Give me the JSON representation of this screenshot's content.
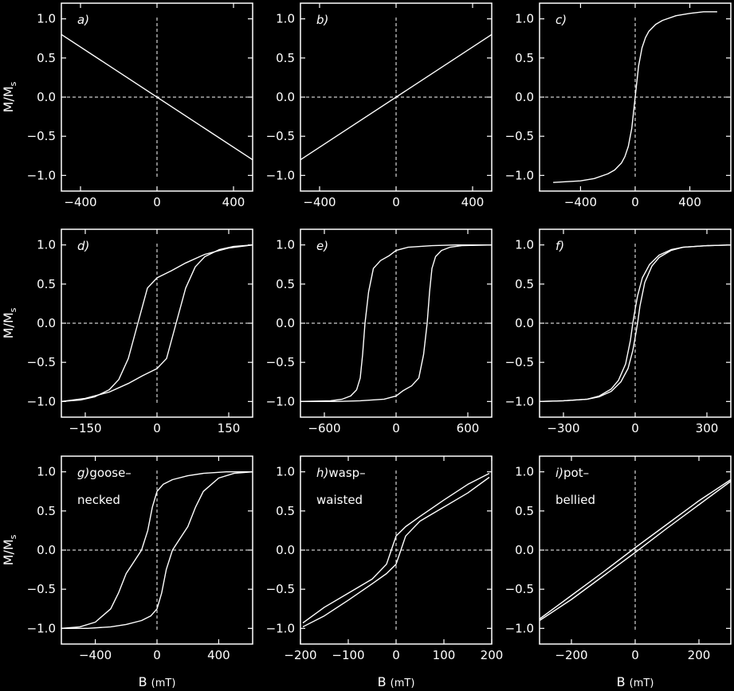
{
  "figure": {
    "ylabel_main": "M/M",
    "ylabel_sub": "s",
    "xlabel_main": "B",
    "xlabel_unit": "(mT)",
    "xlabel_unit_h": "(mT)"
  },
  "chart_data": [
    {
      "id": "a",
      "type": "line",
      "label_tag": "a)",
      "label_text": [],
      "xlim": [
        -500,
        500
      ],
      "ylim": [
        -1.2,
        1.2
      ],
      "xticks": [
        -400,
        0,
        400
      ],
      "xtick_labels": [
        "−400",
        "0",
        "400"
      ],
      "yticks": [
        1.0,
        0.5,
        0.0,
        -0.5,
        -1.0
      ],
      "ytick_labels": [
        "1.0",
        "0.5",
        "0.0",
        "−0.5",
        "−1.0"
      ],
      "series": [
        {
          "x": [
            -500,
            500
          ],
          "y": [
            0.8,
            -0.8
          ]
        }
      ]
    },
    {
      "id": "b",
      "type": "line",
      "label_tag": "b)",
      "label_text": [],
      "xlim": [
        -500,
        500
      ],
      "ylim": [
        -1.2,
        1.2
      ],
      "xticks": [
        -400,
        0,
        400
      ],
      "xtick_labels": [
        "−400",
        "0",
        "400"
      ],
      "yticks": [
        1.0,
        0.5,
        0.0,
        -0.5,
        -1.0
      ],
      "ytick_labels": [
        "1.0",
        "0.5",
        "0.0",
        "−0.5",
        "−1.0"
      ],
      "series": [
        {
          "x": [
            -500,
            500
          ],
          "y": [
            -0.8,
            0.8
          ]
        }
      ]
    },
    {
      "id": "c",
      "type": "line",
      "label_tag": "c)",
      "label_text": [],
      "xlim": [
        -700,
        700
      ],
      "ylim": [
        -1.2,
        1.2
      ],
      "xticks": [
        -400,
        0,
        400
      ],
      "xtick_labels": [
        "−400",
        "0",
        "400"
      ],
      "yticks": [
        1.0,
        0.5,
        0.0,
        -0.5,
        -1.0
      ],
      "ytick_labels": [
        "1.0",
        "0.5",
        "0.0",
        "−0.5",
        "−1.0"
      ],
      "series": [
        {
          "x": [
            -600,
            -400,
            -300,
            -200,
            -150,
            -100,
            -75,
            -50,
            -25,
            0,
            25,
            50,
            75,
            100,
            150,
            200,
            300,
            400,
            500,
            600
          ],
          "y": [
            -1.09,
            -1.07,
            -1.04,
            -0.98,
            -0.93,
            -0.84,
            -0.76,
            -0.63,
            -0.4,
            0.0,
            0.4,
            0.63,
            0.76,
            0.84,
            0.93,
            0.98,
            1.04,
            1.07,
            1.09,
            1.09
          ]
        }
      ]
    },
    {
      "id": "d",
      "type": "line",
      "label_tag": "d)",
      "label_text": [],
      "xlim": [
        -200,
        200
      ],
      "ylim": [
        -1.2,
        1.2
      ],
      "xticks": [
        -150,
        0,
        150
      ],
      "xtick_labels": [
        "−150",
        "0",
        "150"
      ],
      "yticks": [
        1.0,
        0.5,
        0.0,
        -0.5,
        -1.0
      ],
      "ytick_labels": [
        "1.0",
        "0.5",
        "0.0",
        "−0.5",
        "−1.0"
      ],
      "series": [
        {
          "x": [
            200,
            150,
            100,
            60,
            30,
            0,
            -20,
            -40,
            -60,
            -80,
            -100,
            -130,
            -160,
            -200
          ],
          "y": [
            1.0,
            0.96,
            0.88,
            0.77,
            0.67,
            0.58,
            0.45,
            0.0,
            -0.45,
            -0.72,
            -0.85,
            -0.94,
            -0.98,
            -1.0
          ]
        },
        {
          "x": [
            -200,
            -150,
            -100,
            -60,
            -30,
            0,
            20,
            40,
            60,
            80,
            100,
            130,
            160,
            200
          ],
          "y": [
            -1.0,
            -0.96,
            -0.88,
            -0.77,
            -0.67,
            -0.58,
            -0.45,
            0.0,
            0.45,
            0.72,
            0.85,
            0.94,
            0.98,
            1.0
          ]
        }
      ]
    },
    {
      "id": "e",
      "type": "line",
      "label_tag": "e)",
      "label_text": [],
      "xlim": [
        -800,
        800
      ],
      "ylim": [
        -1.2,
        1.2
      ],
      "xticks": [
        -600,
        0,
        600
      ],
      "xtick_labels": [
        "−600",
        "0",
        "600"
      ],
      "yticks": [
        1.0,
        0.5,
        0.0,
        -0.5,
        -1.0
      ],
      "ytick_labels": [
        "1.0",
        "0.5",
        "0.0",
        "−0.5",
        "−1.0"
      ],
      "series": [
        {
          "x": [
            800,
            500,
            300,
            100,
            0,
            -60,
            -130,
            -190,
            -230,
            -260,
            -280,
            -300,
            -330,
            -380,
            -450,
            -550,
            -800
          ],
          "y": [
            1.0,
            1.0,
            0.99,
            0.97,
            0.93,
            0.86,
            0.8,
            0.7,
            0.4,
            0.0,
            -0.4,
            -0.7,
            -0.85,
            -0.93,
            -0.97,
            -0.99,
            -1.0
          ]
        },
        {
          "x": [
            -800,
            -500,
            -300,
            -100,
            0,
            60,
            130,
            190,
            230,
            260,
            280,
            300,
            330,
            380,
            450,
            550,
            800
          ],
          "y": [
            -1.0,
            -1.0,
            -0.99,
            -0.97,
            -0.93,
            -0.86,
            -0.8,
            -0.7,
            -0.4,
            0.0,
            0.4,
            0.7,
            0.85,
            0.93,
            0.97,
            0.99,
            1.0
          ]
        }
      ]
    },
    {
      "id": "f",
      "type": "line",
      "label_tag": "f)",
      "label_text": [],
      "xlim": [
        -400,
        400
      ],
      "ylim": [
        -1.2,
        1.2
      ],
      "xticks": [
        -300,
        0,
        300
      ],
      "xtick_labels": [
        "−300",
        "0",
        "300"
      ],
      "yticks": [
        1.0,
        0.5,
        0.0,
        -0.5,
        -1.0
      ],
      "ytick_labels": [
        "1.0",
        "0.5",
        "0.0",
        "−0.5",
        "−1.0"
      ],
      "series": [
        {
          "x": [
            400,
            300,
            200,
            150,
            100,
            60,
            30,
            10,
            0,
            -10,
            -20,
            -40,
            -70,
            -100,
            -150,
            -200,
            -300,
            -400
          ],
          "y": [
            1.0,
            0.99,
            0.97,
            0.94,
            0.87,
            0.75,
            0.58,
            0.35,
            0.18,
            0.0,
            -0.22,
            -0.52,
            -0.73,
            -0.84,
            -0.93,
            -0.97,
            -0.99,
            -1.0
          ]
        },
        {
          "x": [
            -400,
            -300,
            -200,
            -150,
            -100,
            -60,
            -30,
            -10,
            0,
            10,
            20,
            40,
            70,
            100,
            150,
            200,
            300,
            400
          ],
          "y": [
            -1.0,
            -0.99,
            -0.97,
            -0.94,
            -0.87,
            -0.75,
            -0.58,
            -0.35,
            -0.18,
            0.0,
            0.22,
            0.52,
            0.73,
            0.84,
            0.93,
            0.97,
            0.99,
            1.0
          ]
        }
      ]
    },
    {
      "id": "g",
      "type": "line",
      "label_tag": "g)",
      "label_text": [
        "goose–",
        "necked"
      ],
      "xlim": [
        -620,
        620
      ],
      "ylim": [
        -1.2,
        1.2
      ],
      "xticks": [
        -400,
        0,
        400
      ],
      "xtick_labels": [
        "−400",
        "0",
        "400"
      ],
      "yticks": [
        1.0,
        0.5,
        0.0,
        -0.5,
        -1.0
      ],
      "ytick_labels": [
        "1.0",
        "0.5",
        "0.0",
        "−0.5",
        "−1.0"
      ],
      "series": [
        {
          "x": [
            620,
            450,
            300,
            200,
            100,
            40,
            0,
            -30,
            -60,
            -100,
            -150,
            -200,
            -250,
            -300,
            -400,
            -500,
            -620
          ],
          "y": [
            1.0,
            1.0,
            0.98,
            0.95,
            0.9,
            0.84,
            0.75,
            0.55,
            0.25,
            0.0,
            -0.15,
            -0.3,
            -0.55,
            -0.75,
            -0.92,
            -0.98,
            -1.0
          ]
        },
        {
          "x": [
            -620,
            -450,
            -300,
            -200,
            -100,
            -40,
            0,
            30,
            60,
            100,
            150,
            200,
            250,
            300,
            400,
            500,
            620
          ],
          "y": [
            -1.0,
            -1.0,
            -0.98,
            -0.95,
            -0.9,
            -0.84,
            -0.75,
            -0.55,
            -0.25,
            0.0,
            0.15,
            0.3,
            0.55,
            0.75,
            0.92,
            0.98,
            1.0
          ]
        }
      ]
    },
    {
      "id": "h",
      "type": "line",
      "label_tag": "h)",
      "label_text": [
        "wasp–",
        "waisted"
      ],
      "xlim": [
        -200,
        200
      ],
      "ylim": [
        -1.2,
        1.2
      ],
      "xticks": [
        -200,
        -100,
        0,
        100,
        200
      ],
      "xtick_labels": [
        "−200",
        "−100",
        "0",
        "100",
        "200"
      ],
      "yticks": [
        1.0,
        0.5,
        0.0,
        -0.5,
        -1.0
      ],
      "ytick_labels": [
        "1.0",
        "0.5",
        "0.0",
        "−0.5",
        "−1.0"
      ],
      "series": [
        {
          "x": [
            195,
            150,
            100,
            50,
            20,
            0,
            -10,
            -20,
            -50,
            -100,
            -150,
            -195
          ],
          "y": [
            0.98,
            0.84,
            0.64,
            0.43,
            0.3,
            0.18,
            0.0,
            -0.18,
            -0.37,
            -0.55,
            -0.73,
            -0.93
          ]
        },
        {
          "x": [
            -195,
            -150,
            -100,
            -50,
            -20,
            0,
            10,
            20,
            50,
            100,
            150,
            195
          ],
          "y": [
            -0.98,
            -0.84,
            -0.64,
            -0.43,
            -0.3,
            -0.18,
            0.0,
            0.18,
            0.37,
            0.55,
            0.73,
            0.93
          ]
        }
      ]
    },
    {
      "id": "i",
      "type": "line",
      "label_tag": "i)",
      "label_text": [
        "pot–",
        "bellied"
      ],
      "xlim": [
        -300,
        300
      ],
      "ylim": [
        -1.2,
        1.2
      ],
      "xticks": [
        -200,
        0,
        200
      ],
      "xtick_labels": [
        "−200",
        "0",
        "200"
      ],
      "yticks": [
        1.0,
        0.5,
        0.0,
        -0.5,
        -1.0
      ],
      "ytick_labels": [
        "1.0",
        "0.5",
        "0.0",
        "−0.5",
        "−1.0"
      ],
      "series": [
        {
          "x": [
            300,
            200,
            100,
            0,
            -100,
            -200,
            -300
          ],
          "y": [
            0.9,
            0.63,
            0.33,
            0.03,
            -0.28,
            -0.58,
            -0.88
          ]
        },
        {
          "x": [
            -300,
            -200,
            -100,
            0,
            100,
            200,
            300
          ],
          "y": [
            -0.9,
            -0.63,
            -0.33,
            -0.03,
            0.28,
            0.58,
            0.88
          ]
        }
      ]
    }
  ]
}
